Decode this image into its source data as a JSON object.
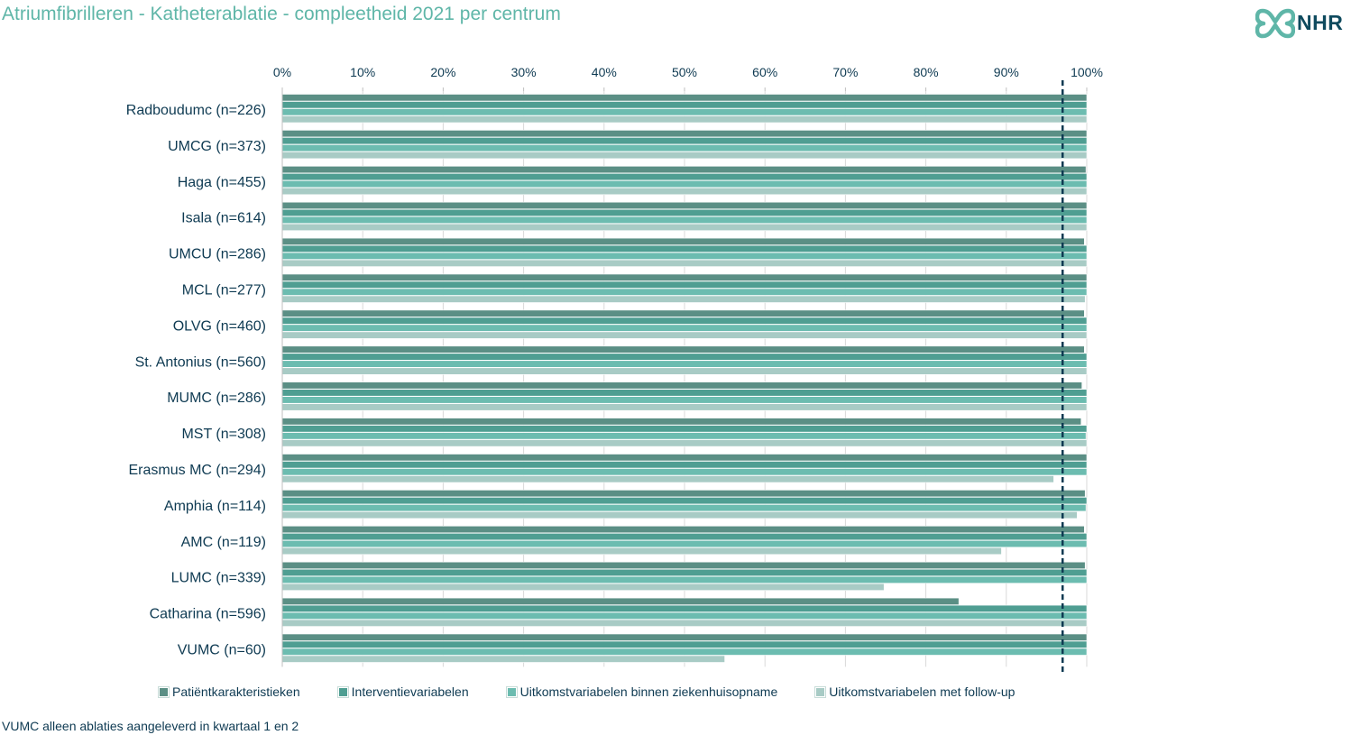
{
  "header": {
    "title": "Atriumfibrilleren - Katheterablatie - compleetheid 2021 per centrum",
    "logo_text": "NHR"
  },
  "footnote": "VUMC alleen ablaties aangeleverd in kwartaal 1 en 2",
  "colors": {
    "series": [
      "#5b8f85",
      "#4f9e92",
      "#6cbcb0",
      "#a8cbc5"
    ],
    "reference_line": "#0e3a52",
    "text": "#0e3a52",
    "title": "#5fb6a8"
  },
  "chart_data": {
    "type": "bar",
    "orientation": "horizontal",
    "title": "Atriumfibrilleren - Katheterablatie - compleetheid 2021 per centrum",
    "xlim": [
      0,
      100
    ],
    "x_ticks": [
      "0%",
      "10%",
      "20%",
      "30%",
      "40%",
      "50%",
      "60%",
      "70%",
      "80%",
      "90%",
      "100%"
    ],
    "x_axis_position": "top",
    "reference_line": 97,
    "legend_position": "bottom",
    "grid": true,
    "categories": [
      "Radboudumc (n=226)",
      "UMCG (n=373)",
      "Haga (n=455)",
      "Isala (n=614)",
      "UMCU (n=286)",
      "MCL (n=277)",
      "OLVG (n=460)",
      "St. Antonius (n=560)",
      "MUMC (n=286)",
      "MST (n=308)",
      "Erasmus MC (n=294)",
      "Amphia (n=114)",
      "AMC (n=119)",
      "LUMC (n=339)",
      "Catharina (n=596)",
      "VUMC (n=60)"
    ],
    "series": [
      {
        "name": "Patiëntkarakteristieken",
        "values": [
          100,
          100,
          99.9,
          100,
          99.7,
          100,
          99.7,
          99.7,
          99.4,
          99.3,
          100,
          99.8,
          99.7,
          99.8,
          84.1,
          100
        ]
      },
      {
        "name": "Interventievariabelen",
        "values": [
          100,
          100,
          100,
          100,
          100,
          100,
          100,
          100,
          100,
          100,
          100,
          100,
          100,
          100,
          100,
          100
        ]
      },
      {
        "name": "Uitkomstvariabelen binnen ziekenhuisopname",
        "values": [
          100,
          100,
          100,
          100,
          100,
          100,
          100,
          100,
          100,
          99.9,
          100,
          99.9,
          100,
          100,
          100,
          100
        ]
      },
      {
        "name": "Uitkomstvariabelen met follow-up",
        "values": [
          100,
          100,
          100,
          100,
          100,
          99.8,
          100,
          100,
          100,
          100,
          95.9,
          98.8,
          89.4,
          74.8,
          100,
          55.0
        ]
      }
    ]
  }
}
